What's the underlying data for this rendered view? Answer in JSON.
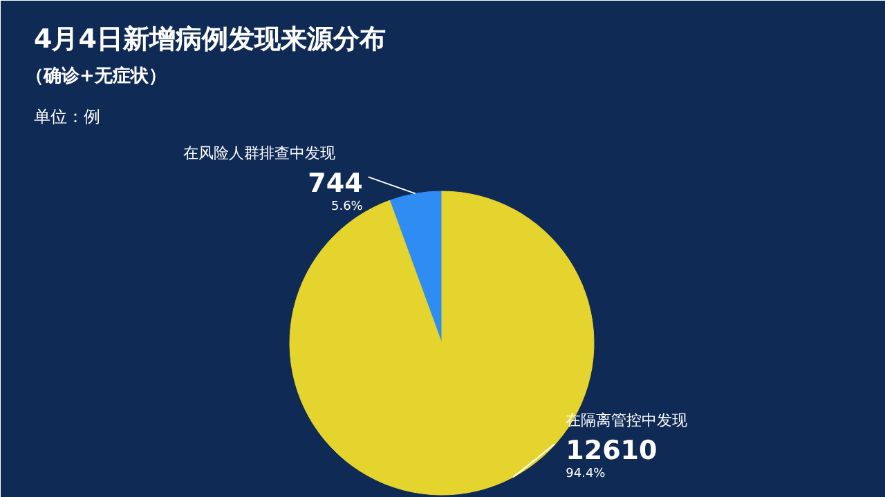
{
  "chart_data": {
    "type": "pie",
    "title": "4月4日新增病例发现来源分布",
    "subtitle": "（确诊+无症状）",
    "annotations": [
      "单位：例"
    ],
    "categories": [
      "在风险人群排查中发现",
      "在隔离管控中发现"
    ],
    "values": [
      744,
      12610
    ],
    "colors": [
      "#2f8cf2",
      "#e6d42e"
    ],
    "value_labels": [
      "744\n5.6%",
      "12610\n94.4%"
    ]
  }
}
